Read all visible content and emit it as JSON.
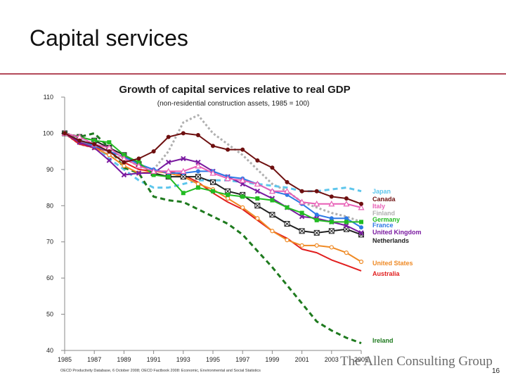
{
  "slide": {
    "title": "Capital services",
    "brand": "The Allen Consulting Group",
    "source_note": "OECD Productivity Database, 6 October 2008; OECD Factbook 2008: Economic, Environmental and Social Statistics",
    "page_number": "16"
  },
  "chart_data": {
    "type": "line",
    "title": "Growth of capital services relative to real GDP",
    "subtitle": "(non-residential construction assets, 1985 = 100)",
    "xlabel": "",
    "ylabel": "",
    "x": [
      1985,
      1986,
      1987,
      1988,
      1989,
      1990,
      1991,
      1992,
      1993,
      1994,
      1995,
      1996,
      1997,
      1998,
      1999,
      2000,
      2001,
      2002,
      2003,
      2004,
      2005
    ],
    "x_ticks": [
      1985,
      1987,
      1989,
      1991,
      1993,
      1995,
      1997,
      1999,
      2001,
      2003,
      2005
    ],
    "y_ticks": [
      40,
      50,
      60,
      70,
      80,
      90,
      100,
      110
    ],
    "ylim": [
      40,
      110
    ],
    "xlim": [
      1985,
      2005
    ],
    "grid": false,
    "legend": "right",
    "series": [
      {
        "name": "Japan",
        "color": "#5ec6ec",
        "style": "dash",
        "marker": "none",
        "values": [
          100,
          98,
          97,
          93,
          90,
          87,
          85,
          85,
          86,
          87,
          87,
          87,
          86.5,
          86,
          85.5,
          85,
          84,
          84,
          84.5,
          85,
          84
        ]
      },
      {
        "name": "Canada",
        "color": "#6e1010",
        "style": "solid",
        "marker": "dot",
        "values": [
          100,
          98,
          97,
          95,
          92,
          93,
          95,
          99,
          100,
          99.5,
          96.5,
          95.5,
          95.5,
          92.5,
          90.5,
          86.5,
          84,
          84,
          82.5,
          82,
          80.5
        ]
      },
      {
        "name": "Italy",
        "color": "#e85fb6",
        "style": "solid",
        "marker": "triangle",
        "values": [
          100,
          99,
          97,
          96,
          93,
          91,
          89.5,
          89.5,
          89.5,
          91,
          89,
          87.5,
          87,
          86,
          84,
          84,
          81,
          80.5,
          80.5,
          80.5,
          79.5
        ]
      },
      {
        "name": "Finland",
        "color": "#b0b0b0",
        "style": "dot",
        "marker": "none",
        "values": [
          100,
          97,
          96,
          94,
          93,
          91,
          90,
          95,
          103,
          105,
          100,
          97,
          94,
          90,
          86,
          84,
          81,
          79.5,
          78,
          77,
          75.5
        ]
      },
      {
        "name": "Germany",
        "color": "#22bb22",
        "style": "solid",
        "marker": "square",
        "values": [
          100,
          99,
          98,
          97.5,
          94,
          92,
          88.5,
          88,
          83.5,
          85,
          84,
          83,
          82.5,
          82,
          81.5,
          79.5,
          78,
          76,
          75.5,
          75.5,
          75.5
        ]
      },
      {
        "name": "France",
        "color": "#2d79e5",
        "style": "solid",
        "marker": "dot",
        "values": [
          100,
          98,
          96.5,
          95,
          93.5,
          91.5,
          90,
          89,
          89,
          89.5,
          89.5,
          88,
          87.5,
          86,
          84,
          83,
          80.5,
          77.5,
          76.5,
          76.5,
          74
        ]
      },
      {
        "name": "United Kingdom",
        "color": "#7a1aa0",
        "style": "solid",
        "marker": "x",
        "values": [
          100,
          97.5,
          96,
          92.5,
          88.5,
          89,
          89,
          92,
          93,
          92,
          89.5,
          88,
          86,
          84,
          82,
          79.5,
          77,
          76.5,
          75.5,
          74.5,
          72.5
        ]
      },
      {
        "name": "Netherlands",
        "color": "#222222",
        "style": "solid",
        "marker": "xbox",
        "values": [
          100,
          99,
          98,
          96,
          94,
          91.5,
          89,
          88,
          88,
          88,
          86.5,
          84,
          83,
          80,
          77.5,
          75,
          73,
          72.5,
          73,
          73.5,
          72
        ]
      },
      {
        "name": "United States",
        "color": "#ef8a25",
        "style": "solid",
        "marker": "circle",
        "values": [
          100,
          98,
          96,
          94,
          91,
          89,
          89.5,
          89,
          88,
          86,
          84.5,
          82,
          79.5,
          76.5,
          73,
          70.5,
          69,
          69,
          68.5,
          67,
          64.5
        ]
      },
      {
        "name": "Australia",
        "color": "#e11e1e",
        "style": "solid",
        "marker": "none",
        "values": [
          100,
          97,
          96,
          95,
          92,
          90,
          89.5,
          89.5,
          88.5,
          86.5,
          83.5,
          81,
          79,
          76,
          73,
          71,
          68,
          67,
          65,
          63.5,
          62
        ]
      },
      {
        "name": "Ireland",
        "color": "#1e7a1e",
        "style": "dash",
        "marker": "none",
        "values": [
          100,
          99,
          100,
          96,
          90.5,
          89,
          82.5,
          81.5,
          81,
          79,
          77,
          75,
          72,
          67.5,
          63,
          58,
          53,
          48,
          45.5,
          43.5,
          42
        ]
      }
    ]
  }
}
